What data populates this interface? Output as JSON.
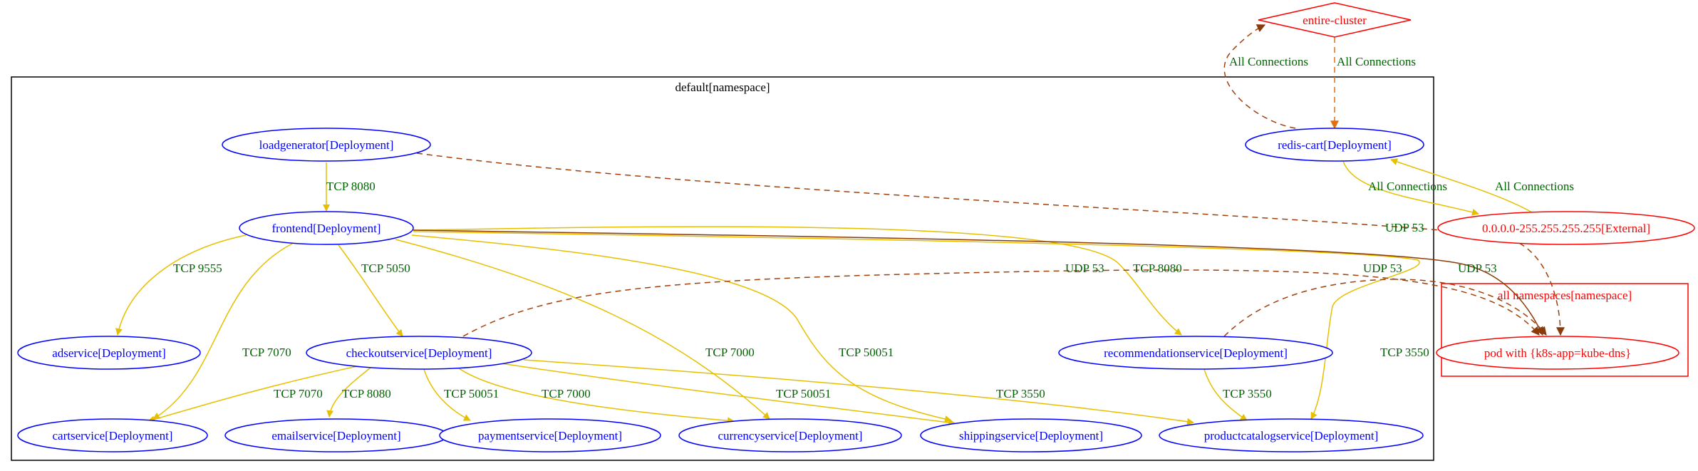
{
  "colors": {
    "internal": "#0000ff",
    "external": "#ff0000",
    "allowed_edge": "#e6c000",
    "dashed_edge": "#a0400a",
    "orange_edge": "#e07010",
    "label": "#006400",
    "cluster_border": "#000000"
  },
  "clusters": {
    "default": "default[namespace]",
    "all": "all namespaces[namespace]"
  },
  "nodes": {
    "entire_cluster": "entire-cluster",
    "redis_cart": "redis-cart[Deployment]",
    "loadgenerator": "loadgenerator[Deployment]",
    "frontend": "frontend[Deployment]",
    "external_ip": "0.0.0.0-255.255.255.255[External]",
    "adservice": "adservice[Deployment]",
    "checkoutservice": "checkoutservice[Deployment]",
    "recommendationservice": "recommendationservice[Deployment]",
    "kube_dns": "pod with {k8s-app=kube-dns}",
    "cartservice": "cartservice[Deployment]",
    "emailservice": "emailservice[Deployment]",
    "paymentservice": "paymentservice[Deployment]",
    "currencyservice": "currencyservice[Deployment]",
    "shippingservice": "shippingservice[Deployment]",
    "productcatalogservice": "productcatalogservice[Deployment]"
  },
  "edge_labels": {
    "redis_to_cluster": "All Connections",
    "cluster_to_redis": "All Connections",
    "redis_to_external": "All Connections",
    "external_to_redis": "All Connections",
    "loadgen_to_frontend": "TCP 8080",
    "frontend_to_adservice": "TCP 9555",
    "frontend_to_cartservice": "TCP 7070",
    "frontend_to_checkout": "TCP 5050",
    "frontend_to_currency": "TCP 7000",
    "frontend_to_shipping": "TCP 50051",
    "frontend_to_recommendation": "TCP 8080",
    "frontend_to_productcatalog": "TCP 3550",
    "frontend_to_dns": "UDP 53",
    "checkout_to_dns": "UDP 53",
    "recommendation_to_dns": "UDP 53",
    "loadgen_to_dns": "UDP 53",
    "checkout_to_cart": "TCP 7070",
    "checkout_to_email": "TCP 8080",
    "checkout_to_payment": "TCP 50051",
    "checkout_to_currency": "TCP 7000",
    "checkout_to_shipping": "TCP 50051",
    "checkout_to_productcatalog": "TCP 3550",
    "recommendation_to_productcatalog": "TCP 3550"
  }
}
